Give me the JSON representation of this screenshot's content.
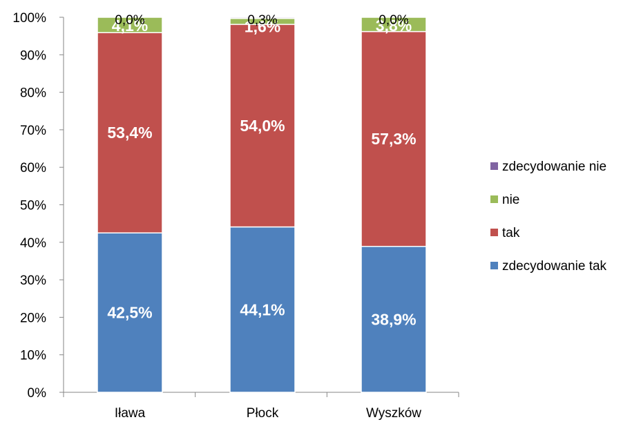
{
  "chart_data": {
    "type": "bar",
    "stacked": true,
    "percent": true,
    "categories": [
      "Iława",
      "Płock",
      "Wyszków"
    ],
    "series": [
      {
        "name": "zdecydowanie tak",
        "color": "#4F81BD",
        "values": [
          42.5,
          44.1,
          38.9
        ],
        "labels": [
          "42,5%",
          "44,1%",
          "38,9%"
        ]
      },
      {
        "name": "tak",
        "color": "#C0504D",
        "values": [
          53.4,
          54.0,
          57.3
        ],
        "labels": [
          "53,4%",
          "54,0%",
          "57,3%"
        ]
      },
      {
        "name": "nie",
        "color": "#9BBB59",
        "values": [
          4.1,
          1.6,
          3.8
        ],
        "labels": [
          "4,1%",
          "1,6%",
          "3,8%"
        ]
      },
      {
        "name": "zdecydowanie nie",
        "color": "#8064A2",
        "values": [
          0.0,
          0.3,
          0.0
        ],
        "labels": [
          "0,0%",
          "0,3%",
          "0,0%"
        ]
      }
    ],
    "ylim": [
      0,
      100
    ],
    "yticks": [
      "0%",
      "10%",
      "20%",
      "30%",
      "40%",
      "50%",
      "60%",
      "70%",
      "80%",
      "90%",
      "100%"
    ],
    "legend": {
      "placement": "right",
      "order": [
        "zdecydowanie nie",
        "nie",
        "tak",
        "zdecydowanie tak"
      ]
    },
    "grid": false
  }
}
